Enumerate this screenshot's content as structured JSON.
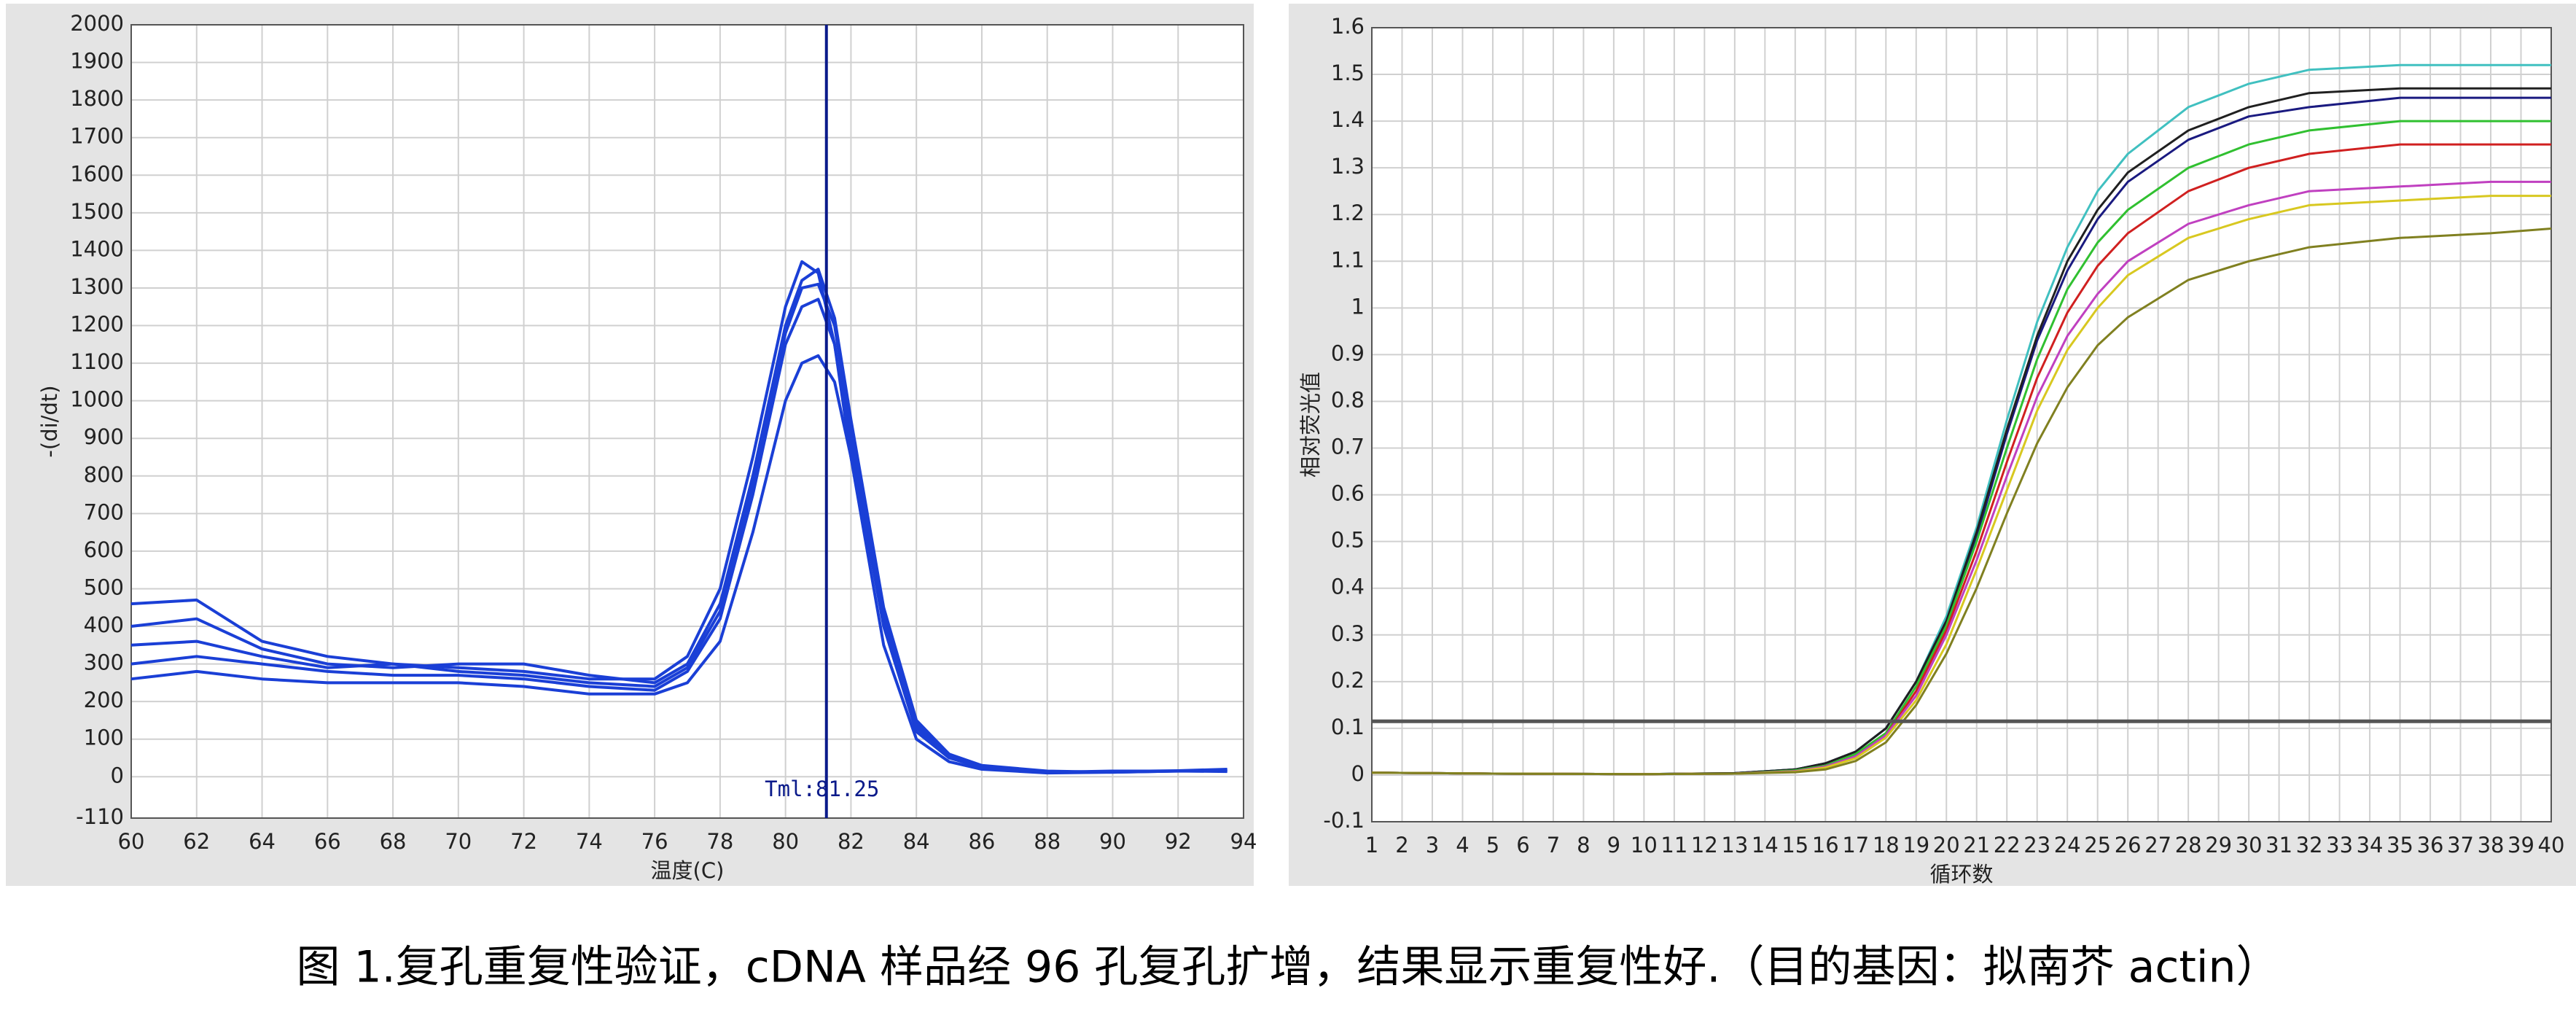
{
  "chart_data": [
    {
      "type": "line",
      "xlabel": "温度(C)",
      "ylabel": "-(di/dt)",
      "xlim": [
        60,
        94
      ],
      "ylim": [
        -110,
        2000
      ],
      "xticks": [
        60,
        62,
        64,
        66,
        68,
        70,
        72,
        74,
        76,
        78,
        80,
        82,
        84,
        86,
        88,
        90,
        92,
        94
      ],
      "yticks": [
        -110,
        0,
        100,
        200,
        300,
        400,
        500,
        600,
        700,
        800,
        900,
        1000,
        1100,
        1200,
        1300,
        1400,
        1500,
        1600,
        1700,
        1800,
        1900,
        2000
      ],
      "grid": true,
      "vline": {
        "value": 81.25,
        "label": "Tml:81.25"
      },
      "x": [
        60,
        62,
        64,
        66,
        68,
        70,
        72,
        74,
        76,
        77,
        78,
        79,
        80,
        80.5,
        81,
        81.5,
        82,
        83,
        84,
        85,
        86,
        88,
        90,
        92,
        93.5
      ],
      "series": [
        {
          "color": "#1a3fd6",
          "values": [
            460,
            470,
            360,
            320,
            300,
            290,
            280,
            260,
            260,
            320,
            500,
            850,
            1250,
            1370,
            1340,
            1150,
            850,
            350,
            100,
            40,
            20,
            10,
            12,
            15,
            18
          ]
        },
        {
          "color": "#1a3fd6",
          "values": [
            300,
            320,
            300,
            280,
            270,
            270,
            260,
            240,
            230,
            280,
            420,
            750,
            1150,
            1250,
            1270,
            1150,
            880,
            400,
            120,
            50,
            25,
            12,
            15,
            15,
            15
          ]
        },
        {
          "color": "#1a3fd6",
          "values": [
            260,
            280,
            260,
            250,
            250,
            250,
            240,
            220,
            220,
            250,
            360,
            650,
            1000,
            1100,
            1120,
            1050,
            850,
            420,
            140,
            60,
            30,
            15,
            12,
            15,
            14
          ]
        },
        {
          "color": "#1a3fd6",
          "values": [
            400,
            420,
            340,
            300,
            290,
            300,
            300,
            270,
            250,
            300,
            460,
            800,
            1200,
            1320,
            1350,
            1220,
            950,
            450,
            150,
            60,
            25,
            12,
            14,
            16,
            20
          ]
        },
        {
          "color": "#1a3fd6",
          "values": [
            350,
            360,
            320,
            290,
            300,
            280,
            270,
            250,
            240,
            290,
            440,
            780,
            1180,
            1300,
            1310,
            1200,
            920,
            430,
            130,
            55,
            22,
            12,
            14,
            15,
            17
          ]
        }
      ]
    },
    {
      "type": "line",
      "xlabel": "循环数",
      "ylabel": "相对荧光值",
      "xlim": [
        1,
        40
      ],
      "ylim": [
        -0.1,
        1.6
      ],
      "xticks": [
        1,
        2,
        3,
        4,
        5,
        6,
        7,
        8,
        9,
        10,
        11,
        12,
        13,
        14,
        15,
        16,
        17,
        18,
        19,
        20,
        21,
        22,
        23,
        24,
        25,
        26,
        27,
        28,
        29,
        30,
        31,
        32,
        33,
        34,
        35,
        36,
        37,
        38,
        39,
        40
      ],
      "yticks": [
        -0.1,
        0,
        0.1,
        0.2,
        0.3,
        0.4,
        0.5,
        0.6,
        0.7,
        0.8,
        0.9,
        1,
        1.1,
        1.2,
        1.3,
        1.4,
        1.5,
        1.6
      ],
      "grid": true,
      "threshold": 0.115,
      "x": [
        1,
        5,
        10,
        13,
        15,
        16,
        17,
        18,
        19,
        20,
        21,
        22,
        23,
        24,
        25,
        26,
        28,
        30,
        32,
        35,
        38,
        40
      ],
      "series": [
        {
          "color": "#40c0c0",
          "values": [
            0.005,
            0.003,
            0.002,
            0.004,
            0.012,
            0.025,
            0.05,
            0.1,
            0.2,
            0.34,
            0.53,
            0.76,
            0.97,
            1.13,
            1.25,
            1.33,
            1.43,
            1.48,
            1.51,
            1.52,
            1.52,
            1.52
          ]
        },
        {
          "color": "#1a1a80",
          "values": [
            0.005,
            0.003,
            0.002,
            0.004,
            0.012,
            0.025,
            0.05,
            0.1,
            0.2,
            0.33,
            0.51,
            0.73,
            0.93,
            1.08,
            1.19,
            1.27,
            1.36,
            1.41,
            1.43,
            1.45,
            1.45,
            1.45
          ]
        },
        {
          "color": "#202020",
          "values": [
            0.005,
            0.003,
            0.002,
            0.004,
            0.012,
            0.025,
            0.05,
            0.1,
            0.2,
            0.33,
            0.52,
            0.74,
            0.94,
            1.1,
            1.21,
            1.29,
            1.38,
            1.43,
            1.46,
            1.47,
            1.47,
            1.47
          ]
        },
        {
          "color": "#30c030",
          "values": [
            0.005,
            0.003,
            0.002,
            0.003,
            0.01,
            0.02,
            0.045,
            0.09,
            0.19,
            0.32,
            0.5,
            0.7,
            0.89,
            1.04,
            1.14,
            1.21,
            1.3,
            1.35,
            1.38,
            1.4,
            1.4,
            1.4
          ]
        },
        {
          "color": "#d02020",
          "values": [
            0.005,
            0.003,
            0.002,
            0.003,
            0.008,
            0.018,
            0.04,
            0.085,
            0.18,
            0.31,
            0.48,
            0.67,
            0.85,
            0.99,
            1.09,
            1.16,
            1.25,
            1.3,
            1.33,
            1.35,
            1.35,
            1.35
          ]
        },
        {
          "color": "#c040c0",
          "values": [
            0.005,
            0.003,
            0.002,
            0.003,
            0.008,
            0.018,
            0.04,
            0.085,
            0.17,
            0.3,
            0.46,
            0.64,
            0.81,
            0.94,
            1.03,
            1.1,
            1.18,
            1.22,
            1.25,
            1.26,
            1.27,
            1.27
          ]
        },
        {
          "color": "#d8c820",
          "values": [
            0.005,
            0.003,
            0.002,
            0.003,
            0.007,
            0.016,
            0.036,
            0.08,
            0.16,
            0.28,
            0.44,
            0.61,
            0.78,
            0.91,
            1.0,
            1.07,
            1.15,
            1.19,
            1.22,
            1.23,
            1.24,
            1.24
          ]
        },
        {
          "color": "#808020",
          "values": [
            0.005,
            0.003,
            0.002,
            0.003,
            0.006,
            0.012,
            0.03,
            0.07,
            0.15,
            0.26,
            0.4,
            0.56,
            0.71,
            0.83,
            0.92,
            0.98,
            1.06,
            1.1,
            1.13,
            1.15,
            1.16,
            1.17
          ]
        }
      ]
    }
  ],
  "caption": "图 1.复孔重复性验证，cDNA 样品经 96 孔复孔扩增，结果显示重复性好.（目的基因：拟南芥 actin）"
}
